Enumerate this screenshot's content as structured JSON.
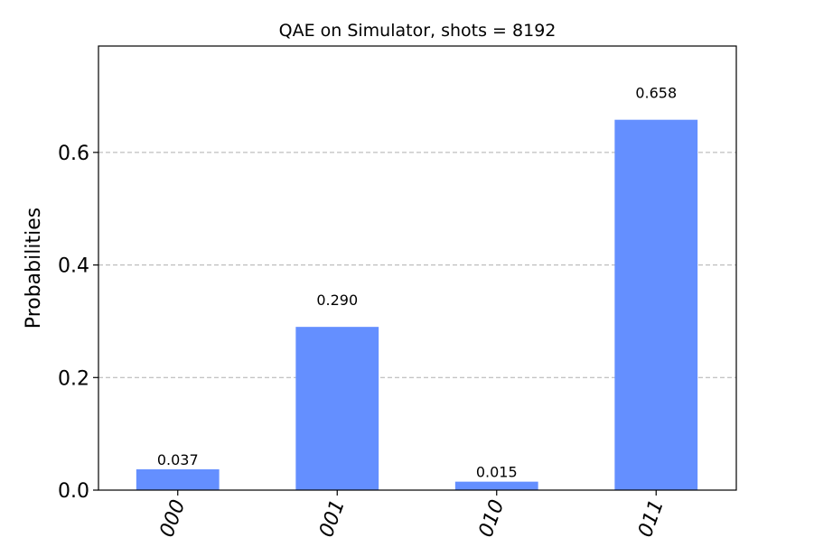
{
  "chart_data": {
    "type": "bar",
    "title": "QAE on Simulator, shots = 8192",
    "xlabel": "",
    "ylabel": "Probabilities",
    "categories": [
      "000",
      "001",
      "010",
      "011"
    ],
    "values": [
      0.037,
      0.29,
      0.015,
      0.658
    ],
    "value_labels": [
      "0.037",
      "0.290",
      "0.015",
      "0.658"
    ],
    "ylim": [
      0,
      0.789
    ],
    "yticks": [
      0.0,
      0.2,
      0.4,
      0.6
    ],
    "ytick_labels": [
      "0.0",
      "0.2",
      "0.4",
      "0.6"
    ],
    "grid": "horizontal dashed",
    "bar_color": "#648fff"
  }
}
